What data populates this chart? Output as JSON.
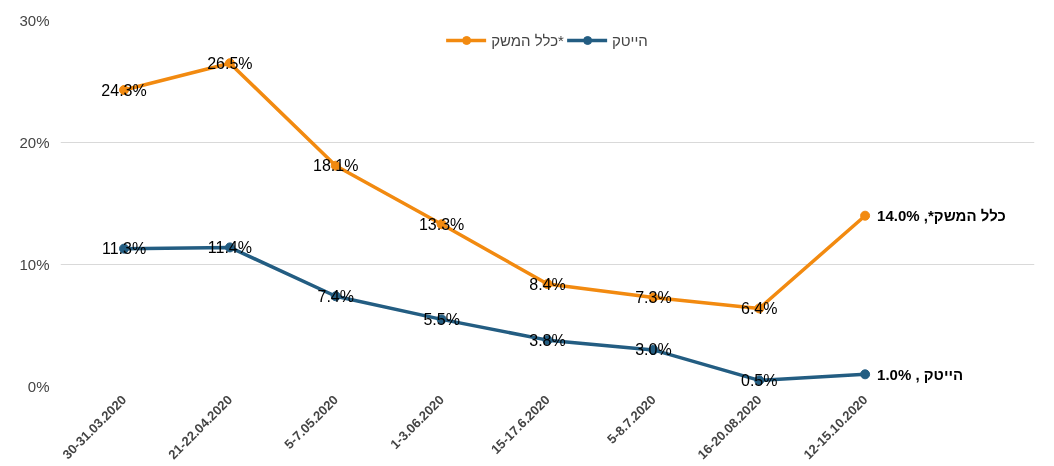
{
  "chart_data": {
    "type": "line",
    "categories": [
      "30-31.03.2020",
      "21-22.04.2020",
      "5-7.05.2020",
      "1-3.06.2020",
      "15-17.6.2020",
      "5-8.7.2020",
      "16-20.08.2020",
      "12-15.10.2020"
    ],
    "series": [
      {
        "name": "כלל המשק*",
        "color": "#f28a10",
        "values": [
          24.3,
          26.5,
          18.1,
          13.3,
          8.4,
          7.3,
          6.4,
          14.0
        ],
        "value_labels": [
          "24.3%",
          "26.5%",
          "18.1%",
          "13.3%",
          "8.4%",
          "7.3%",
          "6.4%",
          "כלל המשק*, 14.0%"
        ]
      },
      {
        "name": "הייטק",
        "color": "#235d82",
        "values": [
          11.3,
          11.4,
          7.4,
          5.5,
          3.8,
          3.0,
          0.5,
          1.0
        ],
        "value_labels": [
          "11.3%",
          "11.4%",
          "7.4%",
          "5.5%",
          "3.8%",
          "3.0%",
          "0.5%",
          "הייטק , 1.0%"
        ]
      }
    ],
    "ylim": [
      0,
      30
    ],
    "yticks": [
      {
        "value": 0,
        "label": "0%"
      },
      {
        "value": 10,
        "label": "10%"
      },
      {
        "value": 20,
        "label": "20%"
      },
      {
        "value": 30,
        "label": "30%"
      }
    ],
    "grid": "y",
    "legend": "top",
    "marker": "circle",
    "line_style": "solid"
  }
}
